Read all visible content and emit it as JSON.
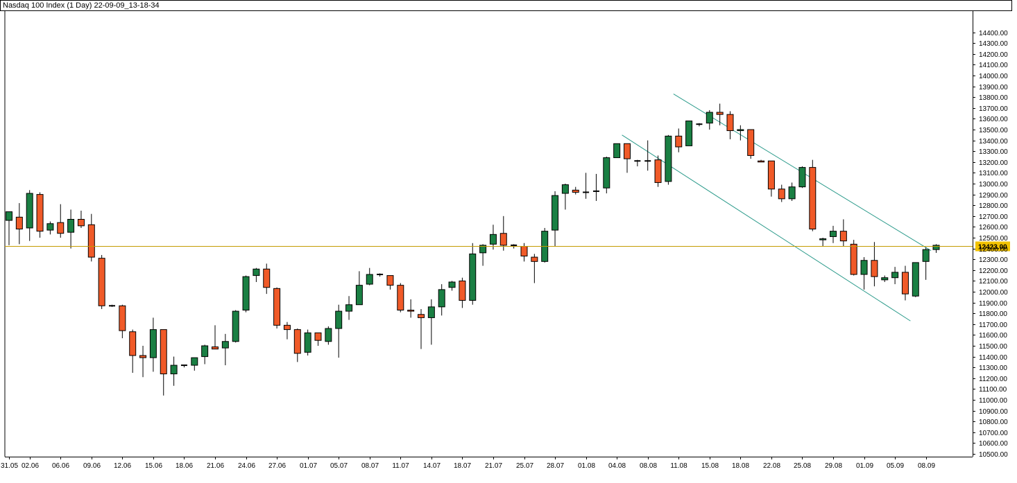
{
  "window": {
    "title": "Nasdaq 100 Index (1 Day) 22-09-09_13-18-34"
  },
  "colors": {
    "up": "#1a7f43",
    "down": "#f05a28",
    "wick": "#000000",
    "current_price_line": "#c49a00",
    "current_price_label_bg": "#f2c200",
    "channel": "#2a9a8a",
    "axis": "#000000"
  },
  "current_price_label": "12423.00",
  "chart_data": {
    "type": "candlestick",
    "title": "Nasdaq 100 Index (1 Day) 22-09-09_13-18-34",
    "ylim": [
      10500,
      14500
    ],
    "y_ticks": [
      "10500.00",
      "10600.00",
      "10700.00",
      "10800.00",
      "10900.00",
      "11000.00",
      "11100.00",
      "11200.00",
      "11300.00",
      "11400.00",
      "11500.00",
      "11600.00",
      "11700.00",
      "11800.00",
      "11900.00",
      "12000.00",
      "12100.00",
      "12200.00",
      "12300.00",
      "12400.00",
      "12500.00",
      "12600.00",
      "12700.00",
      "12800.00",
      "12900.00",
      "13000.00",
      "13100.00",
      "13200.00",
      "13300.00",
      "13400.00",
      "13500.00",
      "13600.00",
      "13700.00",
      "13800.00",
      "13900.00",
      "14000.00",
      "14100.00",
      "14200.00",
      "14300.00",
      "14400.00"
    ],
    "x_ticks": [
      {
        "index": 0,
        "label": "31.05"
      },
      {
        "index": 2,
        "label": "02.06"
      },
      {
        "index": 5,
        "label": "06.06"
      },
      {
        "index": 8,
        "label": "09.06"
      },
      {
        "index": 11,
        "label": "12.06"
      },
      {
        "index": 14,
        "label": "15.06"
      },
      {
        "index": 17,
        "label": "18.06"
      },
      {
        "index": 20,
        "label": "21.06"
      },
      {
        "index": 23,
        "label": "24.06"
      },
      {
        "index": 26,
        "label": "27.06"
      },
      {
        "index": 29,
        "label": "01.07"
      },
      {
        "index": 32,
        "label": "05.07"
      },
      {
        "index": 35,
        "label": "08.07"
      },
      {
        "index": 38,
        "label": "11.07"
      },
      {
        "index": 41,
        "label": "14.07"
      },
      {
        "index": 44,
        "label": "18.07"
      },
      {
        "index": 47,
        "label": "21.07"
      },
      {
        "index": 50,
        "label": "25.07"
      },
      {
        "index": 53,
        "label": "28.07"
      },
      {
        "index": 56,
        "label": "01.08"
      },
      {
        "index": 59,
        "label": "04.08"
      },
      {
        "index": 62,
        "label": "08.08"
      },
      {
        "index": 65,
        "label": "11.08"
      },
      {
        "index": 68,
        "label": "15.08"
      },
      {
        "index": 71,
        "label": "18.08"
      },
      {
        "index": 74,
        "label": "22.08"
      },
      {
        "index": 77,
        "label": "25.08"
      },
      {
        "index": 80,
        "label": "29.08"
      },
      {
        "index": 83,
        "label": "01.09"
      },
      {
        "index": 86,
        "label": "05.09"
      },
      {
        "index": 89,
        "label": "08.09"
      }
    ],
    "current_price": 12423,
    "candles": [
      {
        "o": 12660,
        "h": 12740,
        "l": 12430,
        "c": 12740
      },
      {
        "o": 12690,
        "h": 12820,
        "l": 12440,
        "c": 12580
      },
      {
        "o": 12590,
        "h": 12940,
        "l": 12470,
        "c": 12910
      },
      {
        "o": 12900,
        "h": 12920,
        "l": 12500,
        "c": 12560
      },
      {
        "o": 12570,
        "h": 12650,
        "l": 12530,
        "c": 12630
      },
      {
        "o": 12640,
        "h": 12810,
        "l": 12500,
        "c": 12540
      },
      {
        "o": 12550,
        "h": 12760,
        "l": 12400,
        "c": 12670
      },
      {
        "o": 12670,
        "h": 12750,
        "l": 12590,
        "c": 12610
      },
      {
        "o": 12620,
        "h": 12720,
        "l": 12280,
        "c": 12320
      },
      {
        "o": 12310,
        "h": 12340,
        "l": 11840,
        "c": 11870
      },
      {
        "o": 11870,
        "h": 11880,
        "l": 11860,
        "c": 11870
      },
      {
        "o": 11870,
        "h": 11880,
        "l": 11570,
        "c": 11640
      },
      {
        "o": 11630,
        "h": 11650,
        "l": 11250,
        "c": 11410
      },
      {
        "o": 11410,
        "h": 11500,
        "l": 11210,
        "c": 11390
      },
      {
        "o": 11390,
        "h": 11760,
        "l": 11260,
        "c": 11650
      },
      {
        "o": 11650,
        "h": 11650,
        "l": 11040,
        "c": 11240
      },
      {
        "o": 11240,
        "h": 11400,
        "l": 11130,
        "c": 11320
      },
      {
        "o": 11320,
        "h": 11320,
        "l": 11300,
        "c": 11320
      },
      {
        "o": 11320,
        "h": 11380,
        "l": 11270,
        "c": 11390
      },
      {
        "o": 11400,
        "h": 11510,
        "l": 11330,
        "c": 11500
      },
      {
        "o": 11490,
        "h": 11690,
        "l": 11470,
        "c": 11470
      },
      {
        "o": 11480,
        "h": 11610,
        "l": 11320,
        "c": 11540
      },
      {
        "o": 11540,
        "h": 11830,
        "l": 11530,
        "c": 11820
      },
      {
        "o": 11830,
        "h": 12150,
        "l": 11810,
        "c": 12140
      },
      {
        "o": 12150,
        "h": 12220,
        "l": 12090,
        "c": 12210
      },
      {
        "o": 12210,
        "h": 12260,
        "l": 11980,
        "c": 12040
      },
      {
        "o": 12030,
        "h": 12040,
        "l": 11660,
        "c": 11690
      },
      {
        "o": 11690,
        "h": 11720,
        "l": 11560,
        "c": 11650
      },
      {
        "o": 11650,
        "h": 11660,
        "l": 11350,
        "c": 11430
      },
      {
        "o": 11440,
        "h": 11650,
        "l": 11410,
        "c": 11620
      },
      {
        "o": 11620,
        "h": 11620,
        "l": 11500,
        "c": 11550
      },
      {
        "o": 11540,
        "h": 11680,
        "l": 11510,
        "c": 11660
      },
      {
        "o": 11660,
        "h": 11880,
        "l": 11390,
        "c": 11820
      },
      {
        "o": 11820,
        "h": 11960,
        "l": 11740,
        "c": 11880
      },
      {
        "o": 11880,
        "h": 12190,
        "l": 11880,
        "c": 12060
      },
      {
        "o": 12070,
        "h": 12220,
        "l": 12060,
        "c": 12160
      },
      {
        "o": 12160,
        "h": 12170,
        "l": 12140,
        "c": 12160
      },
      {
        "o": 12150,
        "h": 12150,
        "l": 12020,
        "c": 12060
      },
      {
        "o": 12060,
        "h": 12080,
        "l": 11810,
        "c": 11830
      },
      {
        "o": 11830,
        "h": 11930,
        "l": 11760,
        "c": 11820
      },
      {
        "o": 11790,
        "h": 11840,
        "l": 11470,
        "c": 11760
      },
      {
        "o": 11760,
        "h": 11930,
        "l": 11510,
        "c": 11860
      },
      {
        "o": 11860,
        "h": 12070,
        "l": 11780,
        "c": 12020
      },
      {
        "o": 12040,
        "h": 12100,
        "l": 12010,
        "c": 12090
      },
      {
        "o": 12100,
        "h": 12130,
        "l": 11850,
        "c": 11920
      },
      {
        "o": 11920,
        "h": 12450,
        "l": 11880,
        "c": 12350
      },
      {
        "o": 12360,
        "h": 12440,
        "l": 12240,
        "c": 12430
      },
      {
        "o": 12440,
        "h": 12620,
        "l": 12390,
        "c": 12530
      },
      {
        "o": 12540,
        "h": 12700,
        "l": 12380,
        "c": 12430
      },
      {
        "o": 12430,
        "h": 12440,
        "l": 12400,
        "c": 12430
      },
      {
        "o": 12420,
        "h": 12450,
        "l": 12280,
        "c": 12330
      },
      {
        "o": 12320,
        "h": 12350,
        "l": 12080,
        "c": 12280
      },
      {
        "o": 12280,
        "h": 12590,
        "l": 12270,
        "c": 12560
      },
      {
        "o": 12570,
        "h": 12930,
        "l": 12420,
        "c": 12890
      },
      {
        "o": 12910,
        "h": 13000,
        "l": 12760,
        "c": 12990
      },
      {
        "o": 12940,
        "h": 12970,
        "l": 12900,
        "c": 12920
      },
      {
        "o": 12920,
        "h": 13100,
        "l": 12860,
        "c": 12920
      },
      {
        "o": 12930,
        "h": 13090,
        "l": 12840,
        "c": 12930
      },
      {
        "o": 12960,
        "h": 13250,
        "l": 12910,
        "c": 13240
      },
      {
        "o": 13240,
        "h": 13370,
        "l": 13240,
        "c": 13370
      },
      {
        "o": 13370,
        "h": 13370,
        "l": 13100,
        "c": 13230
      },
      {
        "o": 13210,
        "h": 13220,
        "l": 13160,
        "c": 13210
      },
      {
        "o": 13210,
        "h": 13400,
        "l": 13120,
        "c": 13210
      },
      {
        "o": 13220,
        "h": 13260,
        "l": 12970,
        "c": 13010
      },
      {
        "o": 13020,
        "h": 13450,
        "l": 12990,
        "c": 13440
      },
      {
        "o": 13440,
        "h": 13510,
        "l": 13290,
        "c": 13340
      },
      {
        "o": 13350,
        "h": 13580,
        "l": 13350,
        "c": 13580
      },
      {
        "o": 13550,
        "h": 13560,
        "l": 13530,
        "c": 13550
      },
      {
        "o": 13560,
        "h": 13680,
        "l": 13500,
        "c": 13660
      },
      {
        "o": 13660,
        "h": 13740,
        "l": 13540,
        "c": 13640
      },
      {
        "o": 13640,
        "h": 13670,
        "l": 13410,
        "c": 13490
      },
      {
        "o": 13490,
        "h": 13540,
        "l": 13400,
        "c": 13500
      },
      {
        "o": 13500,
        "h": 13500,
        "l": 13230,
        "c": 13260
      },
      {
        "o": 13210,
        "h": 13220,
        "l": 13200,
        "c": 13200
      },
      {
        "o": 13210,
        "h": 13210,
        "l": 12880,
        "c": 12950
      },
      {
        "o": 12950,
        "h": 12990,
        "l": 12830,
        "c": 12860
      },
      {
        "o": 12860,
        "h": 13010,
        "l": 12840,
        "c": 12970
      },
      {
        "o": 12970,
        "h": 13160,
        "l": 12960,
        "c": 13150
      },
      {
        "o": 13150,
        "h": 13220,
        "l": 12560,
        "c": 12580
      },
      {
        "o": 12480,
        "h": 12500,
        "l": 12420,
        "c": 12490
      },
      {
        "o": 12510,
        "h": 12610,
        "l": 12450,
        "c": 12560
      },
      {
        "o": 12560,
        "h": 12670,
        "l": 12420,
        "c": 12470
      },
      {
        "o": 12440,
        "h": 12480,
        "l": 12150,
        "c": 12160
      },
      {
        "o": 12160,
        "h": 12320,
        "l": 12020,
        "c": 12290
      },
      {
        "o": 12290,
        "h": 12460,
        "l": 12050,
        "c": 12140
      },
      {
        "o": 12110,
        "h": 12150,
        "l": 12090,
        "c": 12130
      },
      {
        "o": 12130,
        "h": 12230,
        "l": 12070,
        "c": 12180
      },
      {
        "o": 12180,
        "h": 12240,
        "l": 11920,
        "c": 11980
      },
      {
        "o": 11960,
        "h": 12270,
        "l": 11950,
        "c": 12270
      },
      {
        "o": 12280,
        "h": 12410,
        "l": 12110,
        "c": 12390
      },
      {
        "o": 12390,
        "h": 12440,
        "l": 12360,
        "c": 12430
      }
    ],
    "channel_lines": [
      {
        "x1": 64.5,
        "y1": 13830,
        "x2": 89.5,
        "y2": 12380
      },
      {
        "x1": 59.5,
        "y1": 13450,
        "x2": 87.5,
        "y2": 11730
      }
    ]
  }
}
